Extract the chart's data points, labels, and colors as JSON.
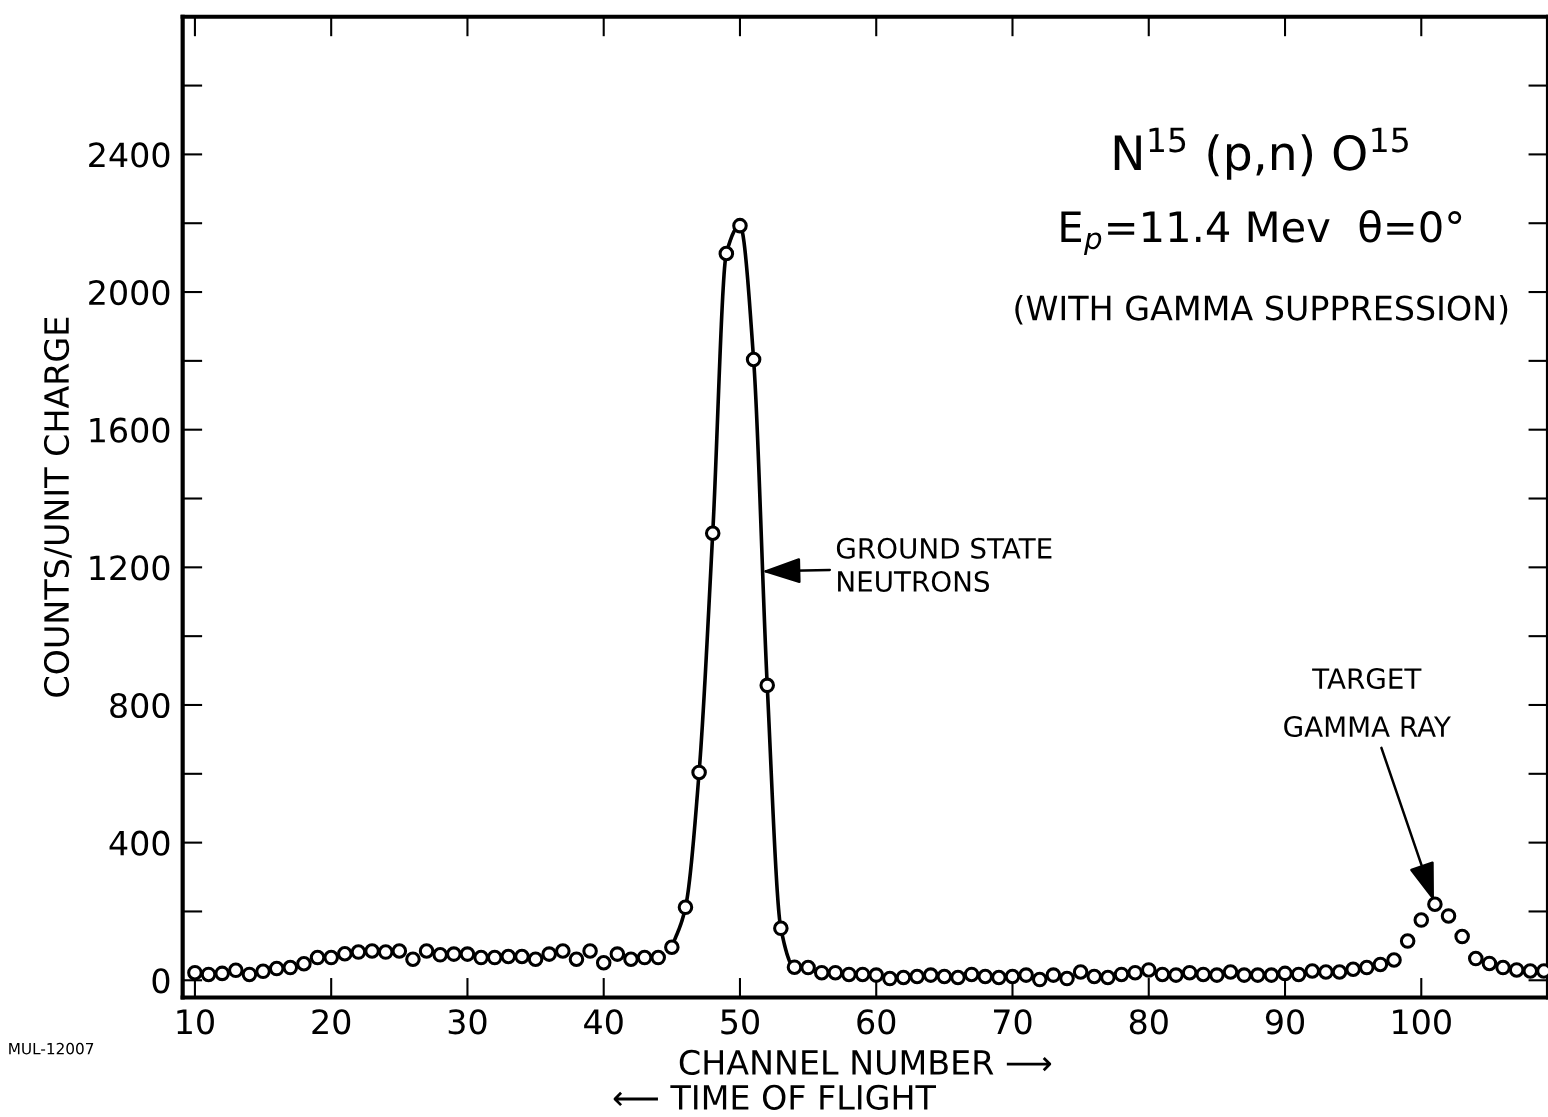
{
  "chart_data": {
    "type": "scatter",
    "xlabel": "CHANNEL NUMBER ⟶",
    "ylabel": "COUNTS/UNIT CHARGE",
    "x": [
      10,
      11,
      12,
      13,
      14,
      15,
      16,
      17,
      18,
      19,
      20,
      21,
      22,
      23,
      24,
      25,
      26,
      27,
      28,
      29,
      30,
      31,
      32,
      33,
      34,
      35,
      36,
      37,
      38,
      39,
      40,
      41,
      42,
      43,
      44,
      45,
      46,
      47,
      48,
      49,
      50,
      51,
      52,
      53,
      54,
      55,
      56,
      57,
      58,
      59,
      60,
      61,
      62,
      63,
      64,
      65,
      66,
      67,
      68,
      69,
      70,
      71,
      72,
      73,
      74,
      75,
      76,
      77,
      78,
      79,
      80,
      81,
      82,
      83,
      84,
      85,
      86,
      87,
      88,
      89,
      90,
      91,
      92,
      93,
      94,
      95,
      96,
      97,
      98,
      99,
      100,
      101,
      102,
      103,
      104,
      105,
      106,
      107,
      108,
      109
    ],
    "series": [
      {
        "color": "#000000",
        "marker": "circle",
        "values": [
          22,
          17,
          20,
          29,
          17,
          26,
          34,
          37,
          48,
          66,
          66,
          77,
          82,
          85,
          82,
          85,
          61,
          85,
          74,
          76,
          76,
          66,
          66,
          69,
          69,
          61,
          76,
          85,
          61,
          85,
          51,
          76,
          61,
          66,
          66,
          96,
          212,
          604,
          1299,
          2112,
          2193,
          1804,
          857,
          151,
          38,
          37,
          22,
          22,
          17,
          17,
          15,
          5,
          8,
          11,
          15,
          11,
          8,
          17,
          11,
          8,
          11,
          15,
          2,
          15,
          5,
          24,
          11,
          8,
          17,
          22,
          30,
          17,
          15,
          22,
          17,
          15,
          24,
          15,
          15,
          15,
          20,
          17,
          27,
          24,
          24,
          32,
          37,
          46,
          59,
          114,
          175,
          221,
          187,
          127,
          63,
          49,
          37,
          30,
          27,
          27
        ]
      },
      {
        "type": "line",
        "color": "#000000",
        "marker": "none",
        "line_style": "solid",
        "x": [
          45,
          46,
          47,
          48,
          49,
          50,
          51,
          52,
          53,
          54,
          55
        ],
        "values": [
          96,
          212,
          604,
          1299,
          2112,
          2193,
          1804,
          857,
          151,
          38,
          37
        ]
      }
    ],
    "xlim": [
      9.1,
      109.3
    ],
    "xticks": [
      10,
      20,
      30,
      40,
      50,
      60,
      70,
      80,
      90,
      100
    ],
    "ylim": [
      -50,
      2800
    ],
    "yticks": [
      0,
      400,
      800,
      1200,
      1600,
      2000,
      2400
    ],
    "grid": false,
    "legend": false,
    "annotations": [
      "N$^{15}$ (p,n) O$^{15}$",
      "E$_{p}$=11.4 Mev  θ=0°",
      "(WITH GAMMA SUPPRESSION)",
      {
        "text": "GROUND STATE\nNEUTRONS",
        "x": 51.4,
        "y": 1188
      },
      {
        "text": "TARGET\nGAMMA RAY",
        "x": 101,
        "y": 221
      },
      "⟵ TIME OF FLIGHT",
      "MUL-12007"
    ]
  }
}
